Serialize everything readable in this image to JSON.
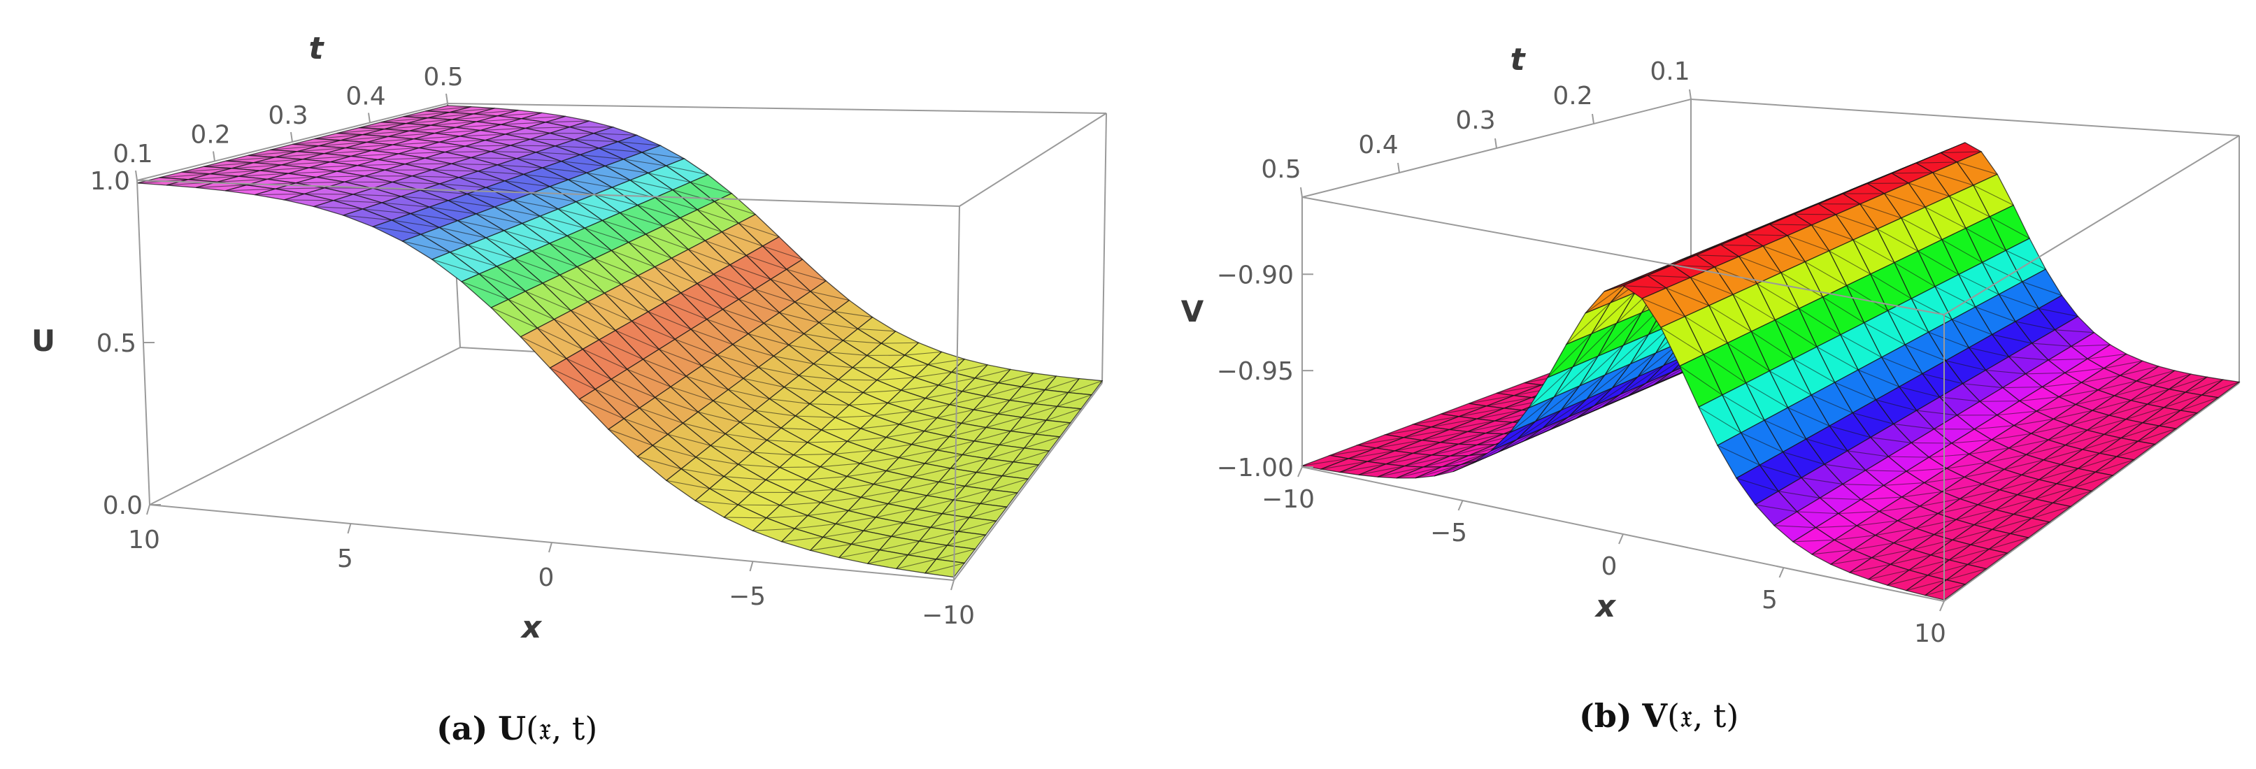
{
  "chart_data": [
    {
      "type": "surface3d",
      "panel_label": "(a)",
      "caption_func": "U",
      "caption_args": "(𝔵, t)",
      "value_axis_label": "U",
      "x_axis_label": "x",
      "t_axis_label": "t",
      "x_range": [
        -10,
        10
      ],
      "t_range": [
        0.1,
        0.5
      ],
      "z_range": [
        0.0,
        1.0
      ],
      "x_ticks": [
        "10",
        "5",
        "0",
        "−5",
        "−10"
      ],
      "x_tick_values": [
        10,
        5,
        0,
        -5,
        -10
      ],
      "t_ticks": [
        "0.1",
        "0.2",
        "0.3",
        "0.4",
        "0.5"
      ],
      "t_tick_values": [
        0.1,
        0.2,
        0.3,
        0.4,
        0.5
      ],
      "z_ticks": [
        "0.0",
        "0.5",
        "1.0"
      ],
      "z_tick_values": [
        0.0,
        0.5,
        1.0
      ],
      "surface": "kink",
      "surface_description_values": {
        "left_limit": 1.0,
        "right_limit": 0.0,
        "center_value": 0.5
      },
      "colormap": "magenta-orange-yellowgreen"
    },
    {
      "type": "surface3d",
      "panel_label": "(b)",
      "caption_func": "V",
      "caption_args": "(𝔵, t)",
      "value_axis_label": "V",
      "x_axis_label": "x",
      "t_axis_label": "t",
      "x_range": [
        -10,
        10
      ],
      "t_range": [
        0.1,
        0.5
      ],
      "z_range": [
        -1.0,
        -0.86
      ],
      "x_ticks": [
        "−10",
        "−5",
        "0",
        "5",
        "10"
      ],
      "x_tick_values": [
        -10,
        -5,
        0,
        5,
        10
      ],
      "t_ticks": [
        "0.1",
        "0.2",
        "0.3",
        "0.4",
        "0.5"
      ],
      "t_tick_values": [
        0.1,
        0.2,
        0.3,
        0.4,
        0.5
      ],
      "z_ticks": [
        "−0.90",
        "−0.95",
        "−1.00"
      ],
      "z_tick_values": [
        -0.9,
        -0.95,
        -1.0
      ],
      "surface": "bell",
      "surface_description_values": {
        "baseline": -1.0,
        "peak": -0.875
      },
      "colormap": "rainbow"
    }
  ]
}
